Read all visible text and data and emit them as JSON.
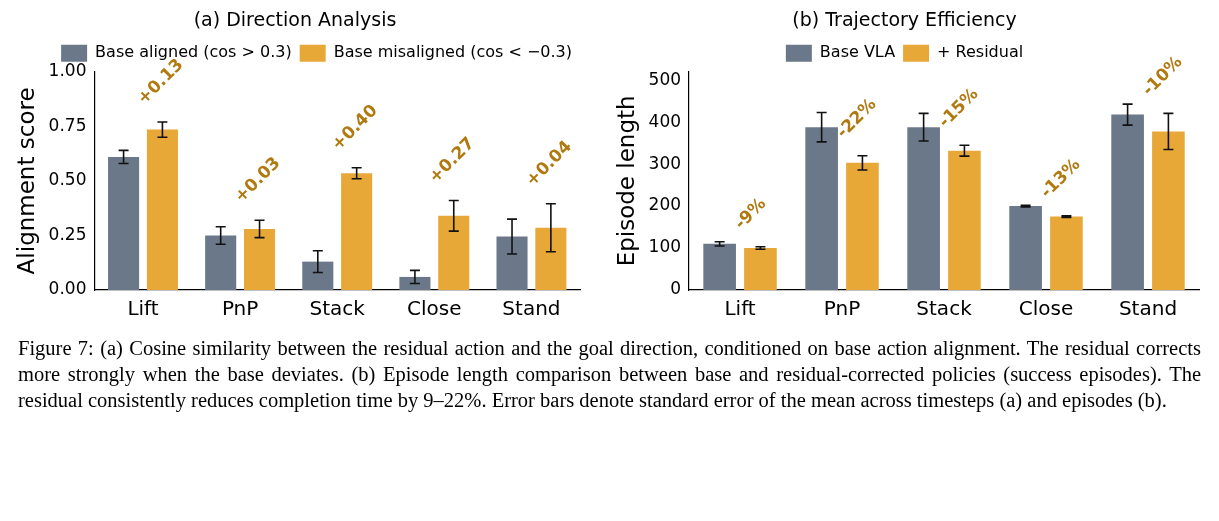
{
  "chart_data": [
    {
      "type": "bar",
      "title": "(a) Direction Analysis",
      "ylabel": "Alignment score",
      "categories": [
        "Lift",
        "PnP",
        "Stack",
        "Close",
        "Stand"
      ],
      "series": [
        {
          "name": "Base aligned (cos > 0.3)",
          "color": "#6b7889",
          "values": [
            0.61,
            0.25,
            0.13,
            0.06,
            0.245
          ],
          "errors": [
            0.03,
            0.04,
            0.05,
            0.03,
            0.08
          ]
        },
        {
          "name": "Base misaligned (cos < −0.3)",
          "color": "#e8a838",
          "values": [
            0.735,
            0.28,
            0.535,
            0.34,
            0.285
          ],
          "errors": [
            0.035,
            0.04,
            0.025,
            0.07,
            0.11
          ]
        }
      ],
      "ylim": [
        0,
        1.0
      ],
      "yticks": [
        {
          "value": 0,
          "label": "0.00"
        },
        {
          "value": 0.25,
          "label": "0.25"
        },
        {
          "value": 0.5,
          "label": "0.50"
        },
        {
          "value": 0.75,
          "label": "0.75"
        },
        {
          "value": 1.0,
          "label": "1.00"
        }
      ],
      "grid": false,
      "legend": "top right",
      "annotations": [
        "+0.13",
        "+0.03",
        "+0.40",
        "+0.27",
        "+0.04",
        "Figure 7: (a) Cosine similarity between the residual action and the goal direction, conditioned on base action alignment. The residual corrects more strongly when the base deviates. (b) Episode length comparison between base and residual-corrected policies (success episodes). The residual consistently reduces completion time by 9–22%. Error bars denote standard error of the mean across timesteps (a) and episodes (b)."
      ]
    },
    {
      "type": "bar",
      "title": "(b) Trajectory Efficiency",
      "ylabel": "Episode length",
      "categories": [
        "Lift",
        "PnP",
        "Stack",
        "Close",
        "Stand"
      ],
      "series": [
        {
          "name": "Base VLA",
          "color": "#6b7889",
          "values": [
            110,
            388,
            388,
            200,
            418
          ],
          "errors": [
            5,
            35,
            33,
            2,
            25
          ]
        },
        {
          "name": "+ Residual",
          "color": "#e8a838",
          "values": [
            100,
            303,
            332,
            175,
            378
          ],
          "errors": [
            3,
            17,
            13,
            2,
            43
          ]
        }
      ],
      "ylim": [
        0,
        520
      ],
      "yticks": [
        0,
        100,
        200,
        300,
        400,
        500
      ],
      "grid": false,
      "legend": "top",
      "annotations": [
        "-9%",
        "-22%",
        "-15%",
        "-13%",
        "-10%"
      ]
    }
  ]
}
